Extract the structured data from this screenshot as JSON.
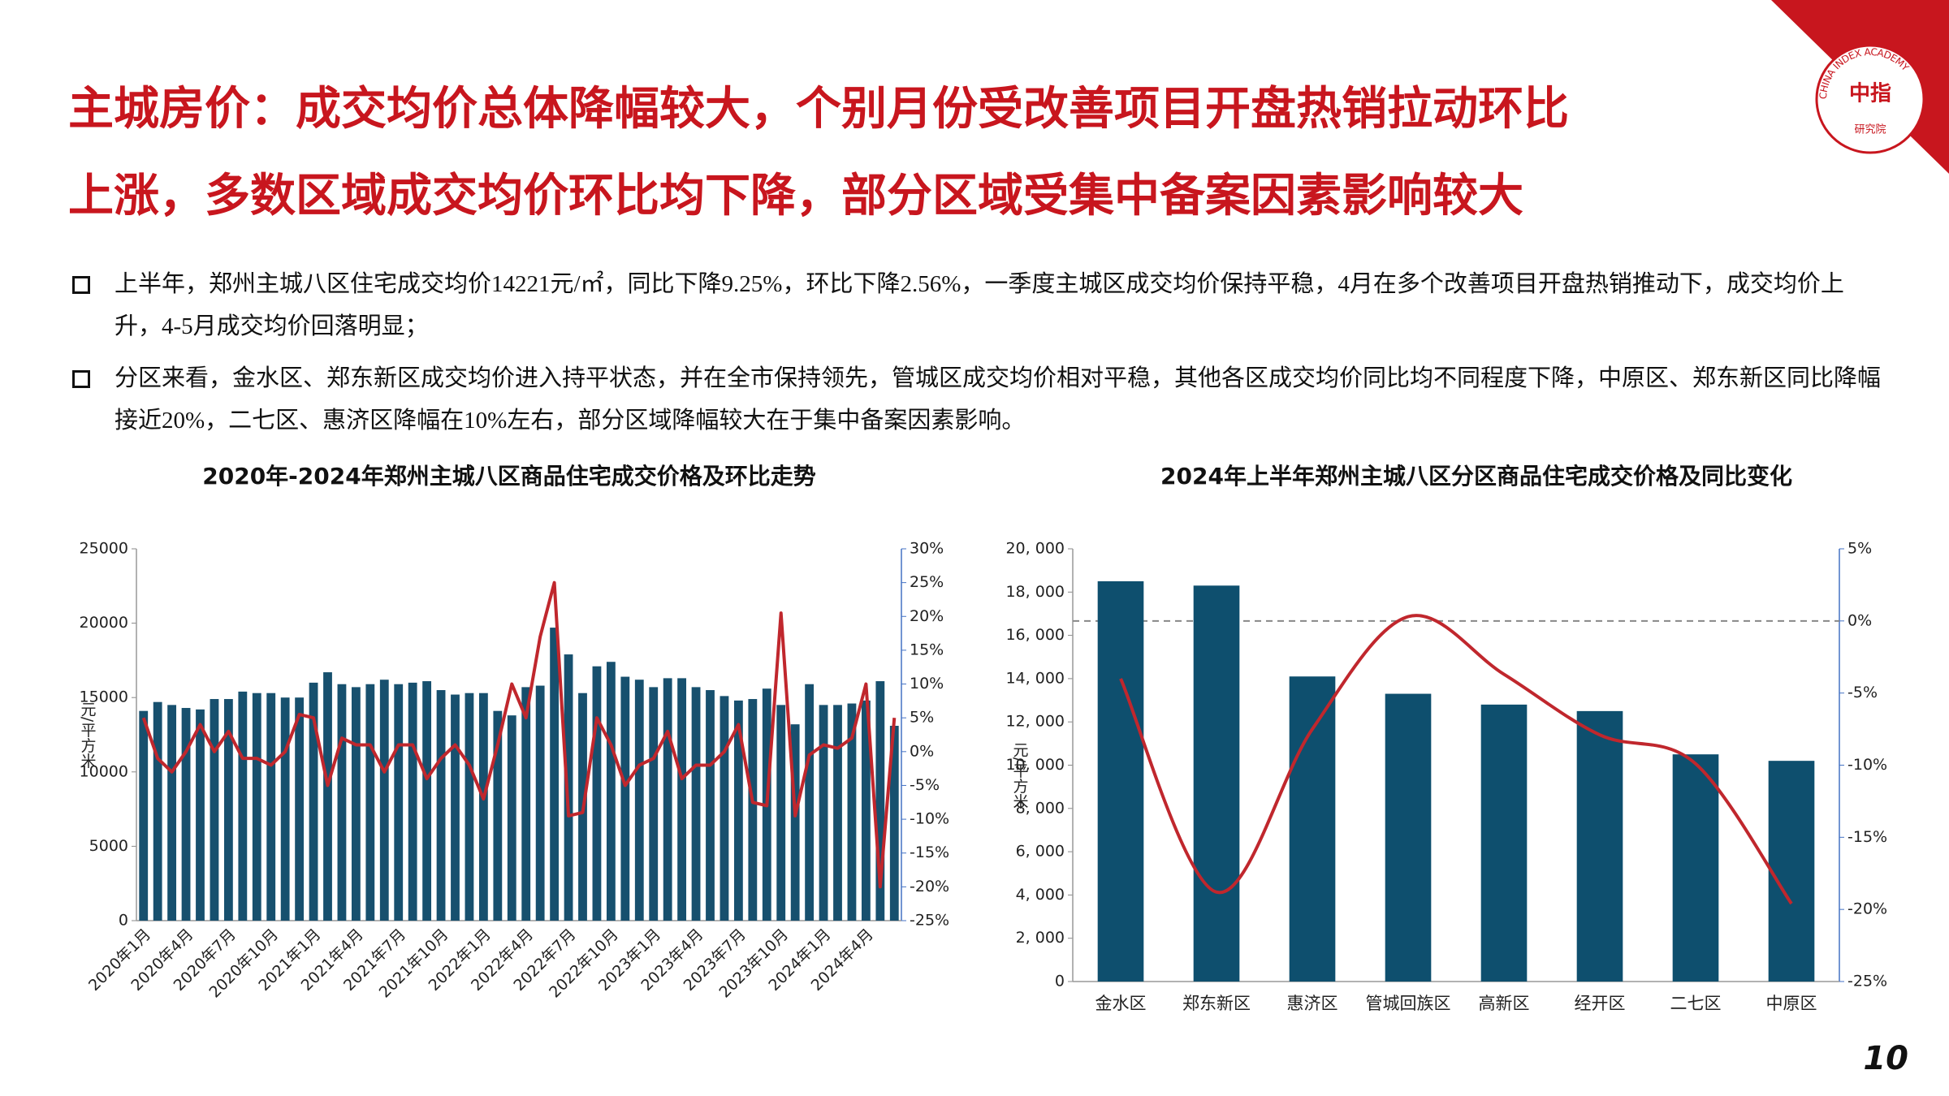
{
  "header": {
    "title_lines": [
      "主城房价：成交均价总体降幅较大，个别月份受改善项目开盘热销拉动环比",
      "上涨，多数区域成交均价环比均下降，部分区域受集中备案因素影响较大"
    ]
  },
  "bullets": [
    "上半年，郑州主城八区住宅成交均价14221元/㎡，同比下降9.25%，环比下降2.56%，一季度主城区成交均价保持平稳，4月在多个改善项目开盘热销推动下，成交均价上升，4-5月成交均价回落明显；",
    "分区来看，金水区、郑东新区成交均价进入持平状态，并在全市保持领先，管城区成交均价相对平稳，其他各区成交均价同比均不同程度下降，中原区、郑东新区同比降幅接近20%，二七区、惠济区降幅在10%左右，部分区域降幅较大在于集中备案因素影响。"
  ],
  "logo": {
    "ring": "CHINA INDEX ACADEMY",
    "mark": "中指",
    "name": "研究院"
  },
  "page_number": "10",
  "chart_data": [
    {
      "type": "bar",
      "title": "2020年-2024年郑州主城八区商品住宅成交价格及环比走势",
      "ylabel": "元/平方米",
      "xtick_rotation": 45,
      "categories": [
        "2020年1月",
        null,
        null,
        "2020年4月",
        null,
        null,
        "2020年7月",
        null,
        null,
        "2020年10月",
        null,
        null,
        "2021年1月",
        null,
        null,
        "2021年4月",
        null,
        null,
        "2021年7月",
        null,
        null,
        "2021年10月",
        null,
        null,
        "2022年1月",
        null,
        null,
        "2022年4月",
        null,
        null,
        "2022年7月",
        null,
        null,
        "2022年10月",
        null,
        null,
        "2023年1月",
        null,
        null,
        "2023年4月",
        null,
        null,
        "2023年7月",
        null,
        null,
        "2023年10月",
        null,
        null,
        "2024年1月",
        null,
        null,
        "2024年4月",
        null,
        null
      ],
      "series": [
        {
          "color": "#17506e",
          "values": [
            14100,
            14700,
            14500,
            14300,
            14200,
            14900,
            14900,
            15400,
            15300,
            15300,
            15000,
            15000,
            16000,
            16700,
            15900,
            15700,
            15900,
            16200,
            15900,
            16000,
            16100,
            15500,
            15200,
            15300,
            15300,
            14100,
            13800,
            15700,
            15800,
            19700,
            17900,
            15300,
            17100,
            17400,
            16400,
            16200,
            15700,
            16300,
            16300,
            15700,
            15500,
            15100,
            14800,
            14900,
            15600,
            14500,
            13200,
            15900,
            14500,
            14500,
            14600,
            14800,
            16100,
            13100
          ]
        },
        {
          "color": "#c0272d",
          "axis": "y2",
          "values": [
            5,
            -1,
            -3,
            0,
            4,
            0,
            3,
            -1,
            -1,
            -2,
            0,
            5.5,
            5,
            -5,
            2,
            1,
            1,
            -3,
            1,
            1,
            -4,
            -1,
            1,
            -2,
            -7,
            1,
            10,
            5,
            17,
            25,
            -9.5,
            -9,
            5,
            1,
            -5,
            -2,
            -1,
            3,
            -4,
            -2,
            -2,
            0,
            4,
            -7.5,
            -8,
            20.5,
            -9.5,
            -0.5,
            1,
            0.5,
            2,
            10,
            -20,
            5
          ]
        }
      ],
      "ylim": [
        0,
        25000
      ],
      "yticks": [
        0,
        5000,
        10000,
        15000,
        20000,
        25000
      ],
      "y2lim": [
        -25,
        30
      ],
      "y2ticks": [
        {
          "value": -25,
          "label": "-25%"
        },
        {
          "value": -20,
          "label": "-20%"
        },
        {
          "value": -15,
          "label": "-15%"
        },
        {
          "value": -10,
          "label": "-10%"
        },
        {
          "value": -5,
          "label": "-5%"
        },
        {
          "value": 0,
          "label": "0%"
        },
        {
          "value": 5,
          "label": "5%"
        },
        {
          "value": 10,
          "label": "10%"
        },
        {
          "value": 15,
          "label": "15%"
        },
        {
          "value": 20,
          "label": "20%"
        },
        {
          "value": 25,
          "label": "25%"
        },
        {
          "value": 30,
          "label": "30%"
        }
      ]
    },
    {
      "type": "bar",
      "title": "2024年上半年郑州主城八区分区商品住宅成交价格及同比变化",
      "ylabel": "元/平方米",
      "categories": [
        "金水区",
        "郑东新区",
        "惠济区",
        "管城回族区",
        "高新区",
        "经开区",
        "二七区",
        "中原区"
      ],
      "series": [
        {
          "color": "#0e4f6e",
          "values": [
            18500,
            18300,
            14100,
            13300,
            12800,
            12500,
            10500,
            10200
          ]
        },
        {
          "color": "#c0272d",
          "axis": "y2",
          "smooth": true,
          "values": [
            -4,
            -18.8,
            -7.5,
            0.3,
            -3.7,
            -7.9,
            -9.9,
            -19.6
          ]
        }
      ],
      "ylim": [
        0,
        20000
      ],
      "yticks": [
        0,
        {
          "value": 2000,
          "label": "2, 000"
        },
        {
          "value": 4000,
          "label": "4, 000"
        },
        {
          "value": 6000,
          "label": "6, 000"
        },
        {
          "value": 8000,
          "label": "8, 000"
        },
        {
          "value": 10000,
          "label": "10, 000"
        },
        {
          "value": 12000,
          "label": "12, 000"
        },
        {
          "value": 14000,
          "label": "14, 000"
        },
        {
          "value": 16000,
          "label": "16, 000"
        },
        {
          "value": 18000,
          "label": "18, 000"
        },
        {
          "value": 20000,
          "label": "20, 000"
        }
      ],
      "y2lim": [
        -25,
        5
      ],
      "y2ticks": [
        {
          "value": -25,
          "label": "-25%"
        },
        {
          "value": -20,
          "label": "-20%"
        },
        {
          "value": -15,
          "label": "-15%"
        },
        {
          "value": -10,
          "label": "-10%"
        },
        {
          "value": -5,
          "label": "-5%"
        },
        {
          "value": 0,
          "label": "0%"
        },
        {
          "value": 5,
          "label": "5%"
        }
      ],
      "y2_reference_line": 0
    }
  ]
}
